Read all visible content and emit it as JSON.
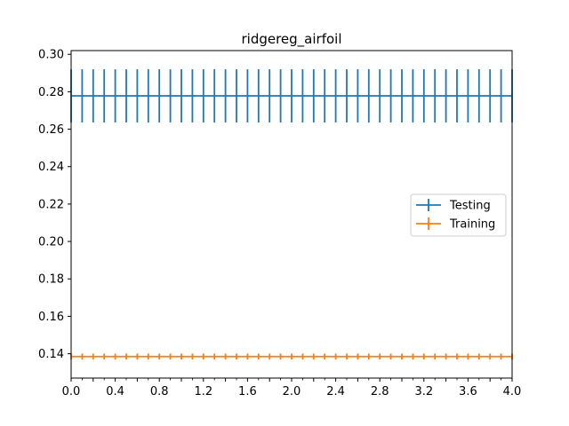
{
  "chart_data": {
    "type": "line",
    "title": "ridgereg_airfoil",
    "xlabel": "",
    "ylabel": "",
    "xlim": [
      0.0,
      4.0
    ],
    "ylim": [
      0.127,
      0.302
    ],
    "x_ticks": [
      0.0,
      0.2,
      0.4,
      0.6,
      0.8,
      1.0,
      1.2,
      1.4,
      1.6,
      1.8,
      2.0,
      2.2,
      2.4,
      2.6,
      2.8,
      3.0,
      3.2,
      3.4,
      3.6,
      3.8,
      4.0
    ],
    "x_tick_labels": [
      "0.0",
      "",
      "0.4",
      "",
      "0.8",
      "",
      "1.2",
      "",
      "1.6",
      "",
      "2.0",
      "",
      "2.4",
      "",
      "2.8",
      "",
      "3.2",
      "",
      "3.6",
      "",
      "4.0"
    ],
    "x_minor_ticks": [
      0.1,
      0.3,
      0.5,
      0.7,
      0.9,
      1.1,
      1.3,
      1.5,
      1.7,
      1.9,
      2.1,
      2.3,
      2.5,
      2.7,
      2.9,
      3.1,
      3.3,
      3.5,
      3.7,
      3.9
    ],
    "y_ticks": [
      0.14,
      0.16,
      0.18,
      0.2,
      0.22,
      0.24,
      0.26,
      0.28,
      0.3
    ],
    "y_tick_labels": [
      "0.14",
      "0.16",
      "0.18",
      "0.20",
      "0.22",
      "0.24",
      "0.26",
      "0.28",
      "0.30"
    ],
    "grid": false,
    "legend_position": "center-right",
    "x": [
      0.0,
      0.1,
      0.2,
      0.3,
      0.4,
      0.5,
      0.6,
      0.7,
      0.8,
      0.9,
      1.0,
      1.1,
      1.2,
      1.3,
      1.4,
      1.5,
      1.6,
      1.7,
      1.8,
      1.9,
      2.0,
      2.1,
      2.2,
      2.3,
      2.4,
      2.5,
      2.6,
      2.7,
      2.8,
      2.9,
      3.0,
      3.1,
      3.2,
      3.3,
      3.4,
      3.5,
      3.6,
      3.7,
      3.8,
      3.9,
      4.0
    ],
    "series": [
      {
        "name": "Testing",
        "color": "#1f77b4",
        "y": 0.2778,
        "yerr": 0.0142
      },
      {
        "name": "Training",
        "color": "#ff7f0e",
        "y": 0.1385,
        "yerr": 0.0016
      }
    ]
  }
}
